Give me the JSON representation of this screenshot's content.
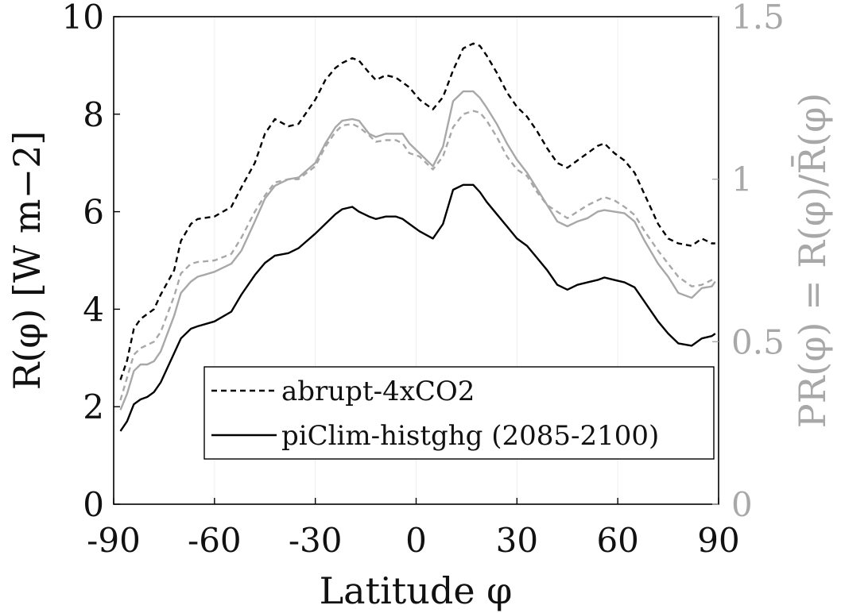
{
  "chart_data": {
    "type": "line",
    "xlabel": "Latitude φ",
    "ylabel_left": "R(φ) [W m−2]",
    "ylabel_right": "PR(φ) = R(φ)/R̄(φ)",
    "xlim": [
      -90,
      90
    ],
    "ylim_left": [
      0,
      10
    ],
    "ylim_right": [
      0,
      1.5
    ],
    "xticks": [
      -90,
      -60,
      -30,
      0,
      30,
      60,
      90
    ],
    "xtick_labels": [
      "-90",
      "-60",
      "-30",
      "0",
      "30",
      "60",
      "90"
    ],
    "yticks_left": [
      0,
      2,
      4,
      6,
      8,
      10
    ],
    "ytick_labels_left": [
      "0",
      "2",
      "4",
      "6",
      "8",
      "10"
    ],
    "yticks_right": [
      0,
      0.5,
      1,
      1.5
    ],
    "ytick_labels_right": [
      "0",
      "0.5",
      "1",
      "1.5"
    ],
    "grid": "vertical lines at x ticks",
    "legend_position": "lower-right",
    "legend": [
      "abrupt-4xCO2",
      "piClim-histghg (2085-2100)"
    ],
    "colors": {
      "black": "#000000",
      "gray": "#a8a8a8"
    },
    "series": [
      {
        "name": "abrupt-4xCO2",
        "axis": "left",
        "style": "dashed",
        "color": "#000000",
        "x": [
          -88,
          -86,
          -84,
          -82,
          -80,
          -78,
          -76,
          -72,
          -70,
          -67,
          -65,
          -60,
          -55,
          -52,
          -48,
          -45,
          -42,
          -38,
          -35,
          -30,
          -27,
          -24,
          -22,
          -19,
          -17,
          -14,
          -12,
          -9,
          -6,
          -4,
          -2,
          1,
          5,
          8,
          11,
          14,
          17,
          19,
          21,
          24,
          27,
          30,
          33,
          36,
          39,
          42,
          45,
          48,
          51,
          54,
          56,
          59,
          62,
          65,
          68,
          72,
          75,
          78,
          82,
          85,
          88,
          89
        ],
        "y": [
          2.55,
          2.95,
          3.6,
          3.8,
          3.9,
          4.0,
          4.3,
          4.8,
          5.4,
          5.75,
          5.85,
          5.9,
          6.1,
          6.5,
          7.0,
          7.6,
          7.9,
          7.75,
          7.8,
          8.3,
          8.7,
          8.95,
          9.05,
          9.15,
          9.1,
          8.85,
          8.7,
          8.8,
          8.75,
          8.65,
          8.55,
          8.3,
          8.1,
          8.35,
          8.9,
          9.35,
          9.45,
          9.4,
          9.2,
          8.85,
          8.45,
          8.15,
          7.95,
          7.65,
          7.3,
          7.0,
          6.9,
          7.05,
          7.2,
          7.35,
          7.4,
          7.2,
          7.05,
          6.8,
          6.35,
          5.75,
          5.45,
          5.35,
          5.3,
          5.45,
          5.35,
          5.35
        ]
      },
      {
        "name": "piClim-histghg (2085-2100)",
        "axis": "left",
        "style": "solid",
        "color": "#000000",
        "x": [
          -88,
          -86,
          -84,
          -82,
          -80,
          -78,
          -76,
          -72,
          -70,
          -67,
          -65,
          -60,
          -55,
          -52,
          -48,
          -45,
          -42,
          -38,
          -35,
          -30,
          -27,
          -24,
          -22,
          -19,
          -17,
          -14,
          -12,
          -9,
          -6,
          -4,
          -2,
          1,
          5,
          8,
          11,
          14,
          17,
          19,
          21,
          24,
          27,
          30,
          33,
          36,
          39,
          42,
          45,
          48,
          51,
          54,
          56,
          59,
          62,
          65,
          68,
          72,
          75,
          78,
          82,
          85,
          88,
          89
        ],
        "y": [
          1.5,
          1.7,
          2.05,
          2.15,
          2.2,
          2.3,
          2.5,
          3.1,
          3.4,
          3.6,
          3.65,
          3.75,
          3.95,
          4.3,
          4.7,
          4.95,
          5.1,
          5.15,
          5.25,
          5.55,
          5.75,
          5.95,
          6.05,
          6.1,
          6.0,
          5.9,
          5.85,
          5.9,
          5.9,
          5.85,
          5.75,
          5.6,
          5.45,
          5.75,
          6.45,
          6.55,
          6.55,
          6.4,
          6.2,
          5.95,
          5.7,
          5.45,
          5.3,
          5.05,
          4.8,
          4.5,
          4.4,
          4.5,
          4.55,
          4.6,
          4.65,
          4.6,
          4.55,
          4.45,
          4.15,
          3.75,
          3.5,
          3.3,
          3.25,
          3.4,
          3.45,
          3.5
        ]
      },
      {
        "name": "abrupt-4xCO2",
        "axis": "right",
        "style": "dashed",
        "color": "#a8a8a8",
        "x": [
          -88,
          -86,
          -84,
          -82,
          -80,
          -78,
          -76,
          -72,
          -70,
          -67,
          -65,
          -60,
          -55,
          -52,
          -48,
          -45,
          -42,
          -38,
          -35,
          -30,
          -27,
          -24,
          -22,
          -19,
          -17,
          -14,
          -12,
          -9,
          -6,
          -4,
          -2,
          1,
          5,
          8,
          11,
          14,
          17,
          19,
          21,
          24,
          27,
          30,
          33,
          36,
          39,
          42,
          45,
          48,
          51,
          54,
          56,
          59,
          62,
          65,
          68,
          72,
          75,
          78,
          82,
          85,
          88,
          89
        ],
        "y": [
          0.32,
          0.39,
          0.46,
          0.48,
          0.49,
          0.5,
          0.53,
          0.64,
          0.71,
          0.74,
          0.745,
          0.75,
          0.77,
          0.82,
          0.9,
          0.95,
          0.99,
          1.0,
          1.0,
          1.04,
          1.1,
          1.145,
          1.165,
          1.17,
          1.16,
          1.135,
          1.115,
          1.12,
          1.12,
          1.11,
          1.08,
          1.07,
          1.03,
          1.07,
          1.16,
          1.2,
          1.21,
          1.205,
          1.18,
          1.13,
          1.07,
          1.03,
          1.01,
          0.96,
          0.92,
          0.9,
          0.88,
          0.9,
          0.92,
          0.935,
          0.945,
          0.935,
          0.915,
          0.89,
          0.84,
          0.78,
          0.74,
          0.7,
          0.67,
          0.675,
          0.69,
          0.695
        ]
      },
      {
        "name": "piClim-histghg (2085-2100)",
        "axis": "right",
        "style": "solid",
        "color": "#a8a8a8",
        "x": [
          -88,
          -86,
          -84,
          -82,
          -80,
          -78,
          -76,
          -72,
          -70,
          -67,
          -65,
          -60,
          -55,
          -52,
          -48,
          -45,
          -42,
          -38,
          -35,
          -30,
          -27,
          -24,
          -22,
          -19,
          -17,
          -14,
          -12,
          -9,
          -6,
          -4,
          -2,
          1,
          5,
          8,
          11,
          14,
          17,
          19,
          21,
          24,
          27,
          30,
          33,
          36,
          39,
          42,
          45,
          48,
          51,
          54,
          56,
          59,
          62,
          65,
          68,
          72,
          75,
          78,
          82,
          85,
          88,
          89
        ],
        "y": [
          0.29,
          0.34,
          0.41,
          0.43,
          0.43,
          0.44,
          0.47,
          0.58,
          0.65,
          0.685,
          0.7,
          0.715,
          0.74,
          0.78,
          0.87,
          0.94,
          0.98,
          1.0,
          1.005,
          1.05,
          1.11,
          1.16,
          1.18,
          1.185,
          1.18,
          1.14,
          1.13,
          1.14,
          1.14,
          1.14,
          1.11,
          1.08,
          1.04,
          1.1,
          1.24,
          1.27,
          1.27,
          1.25,
          1.22,
          1.17,
          1.11,
          1.06,
          1.02,
          0.97,
          0.92,
          0.87,
          0.855,
          0.87,
          0.88,
          0.9,
          0.905,
          0.9,
          0.895,
          0.87,
          0.81,
          0.74,
          0.7,
          0.65,
          0.635,
          0.665,
          0.67,
          0.685
        ]
      }
    ]
  }
}
